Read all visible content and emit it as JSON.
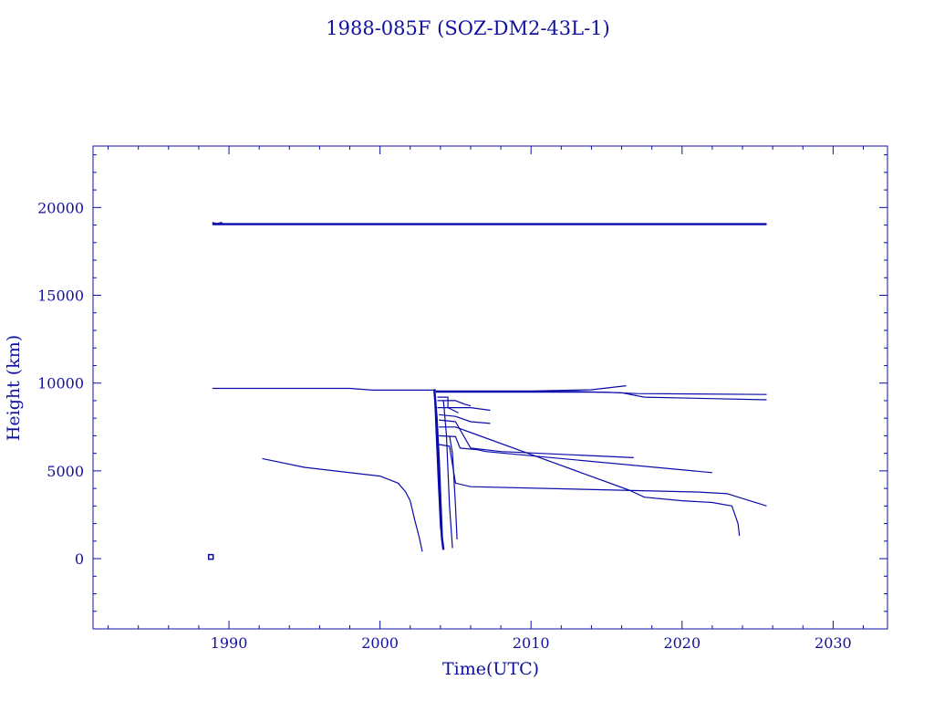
{
  "chart_data": {
    "type": "line",
    "title": "1988-085F (SOZ-DM2-43L-1)",
    "xlabel": "Time(UTC)",
    "ylabel": "Height (km)",
    "xlim": [
      1981,
      2033.6
    ],
    "ylim": [
      -4000,
      23500
    ],
    "x_ticks": [
      1990,
      2000,
      2010,
      2020,
      2030
    ],
    "y_ticks": [
      0,
      5000,
      10000,
      15000,
      20000
    ],
    "grid": false,
    "legend": "none",
    "color": "#0a0aaa",
    "series": [
      {
        "x": [
          1988.9,
          2025.6
        ],
        "y": [
          19050,
          19050
        ],
        "width": "thick"
      },
      {
        "x": [
          1988.9,
          1989.2,
          1989.5,
          1989.6
        ],
        "y": [
          19150,
          19080,
          19150,
          19060
        ]
      },
      {
        "x": [
          1988.9,
          1998.0,
          1999.5,
          2003.7
        ],
        "y": [
          9700,
          9700,
          9600,
          9600
        ]
      },
      {
        "x": [
          2003.7,
          2010.0,
          2014.0,
          2016.3
        ],
        "y": [
          9550,
          9550,
          9620,
          9850
        ]
      },
      {
        "x": [
          2003.7,
          2015.0,
          2017.0,
          2025.6
        ],
        "y": [
          9480,
          9480,
          9400,
          9350
        ]
      },
      {
        "x": [
          2003.7,
          2013.0,
          2016.0,
          2017.5,
          2025.6
        ],
        "y": [
          9520,
          9520,
          9450,
          9200,
          9050
        ]
      },
      {
        "x": [
          2003.8,
          2004.5,
          2004.5,
          2005.2
        ],
        "y": [
          9200,
          9200,
          8600,
          8300
        ]
      },
      {
        "x": [
          2003.8,
          2005.0,
          2005.6,
          2006.0
        ],
        "y": [
          9000,
          9000,
          8800,
          8700
        ]
      },
      {
        "x": [
          2003.8,
          2006.0,
          2007.3
        ],
        "y": [
          8600,
          8600,
          8450
        ]
      },
      {
        "x": [
          2003.9,
          2005.0,
          2006.0,
          2007.3
        ],
        "y": [
          8200,
          8100,
          7800,
          7700
        ]
      },
      {
        "x": [
          2003.9,
          2005.0,
          2006.0,
          2008.0,
          2016.8
        ],
        "y": [
          7900,
          7800,
          6300,
          6100,
          5750
        ]
      },
      {
        "x": [
          2003.9,
          2005.0,
          2005.3,
          2006.5,
          2007.0,
          2022.0
        ],
        "y": [
          7000,
          6950,
          6300,
          6200,
          6100,
          4900
        ]
      },
      {
        "x": [
          2003.9,
          2005.0,
          2016.5,
          2017.5,
          2020.0,
          2022.0,
          2023.3,
          2023.7,
          2023.8
        ],
        "y": [
          7500,
          7500,
          3900,
          3500,
          3300,
          3200,
          3000,
          2000,
          1300
        ]
      },
      {
        "x": [
          2003.9,
          2004.6,
          2005.0,
          2006.0,
          2021.0,
          2023.0,
          2025.6
        ],
        "y": [
          6500,
          6400,
          4300,
          4100,
          3800,
          3700,
          3000
        ]
      },
      {
        "x": [
          1992.2,
          1995.0,
          1997.0,
          2000.0,
          2001.2,
          2001.7,
          2002.0,
          2002.3,
          2002.6,
          2002.8
        ],
        "y": [
          5700,
          5200,
          5000,
          4700,
          4300,
          3800,
          3300,
          2200,
          1200,
          400
        ]
      },
      {
        "x": [
          2003.6,
          2003.75,
          2003.9,
          2004.0,
          2004.1,
          2004.2
        ],
        "y": [
          9650,
          8000,
          5500,
          3200,
          1200,
          500
        ],
        "width": "thick"
      },
      {
        "x": [
          2003.6,
          2003.7,
          2003.85,
          2004.0,
          2004.15
        ],
        "y": [
          9600,
          7500,
          4500,
          1800,
          700
        ]
      },
      {
        "x": [
          2004.2,
          2004.4,
          2004.6,
          2004.8
        ],
        "y": [
          9000,
          7000,
          3000,
          600
        ]
      },
      {
        "x": [
          2004.6,
          2004.8,
          2005.0,
          2005.1
        ],
        "y": [
          7000,
          6000,
          3000,
          1100
        ]
      }
    ],
    "marker": {
      "x": 1988.8,
      "y": 100
    }
  }
}
